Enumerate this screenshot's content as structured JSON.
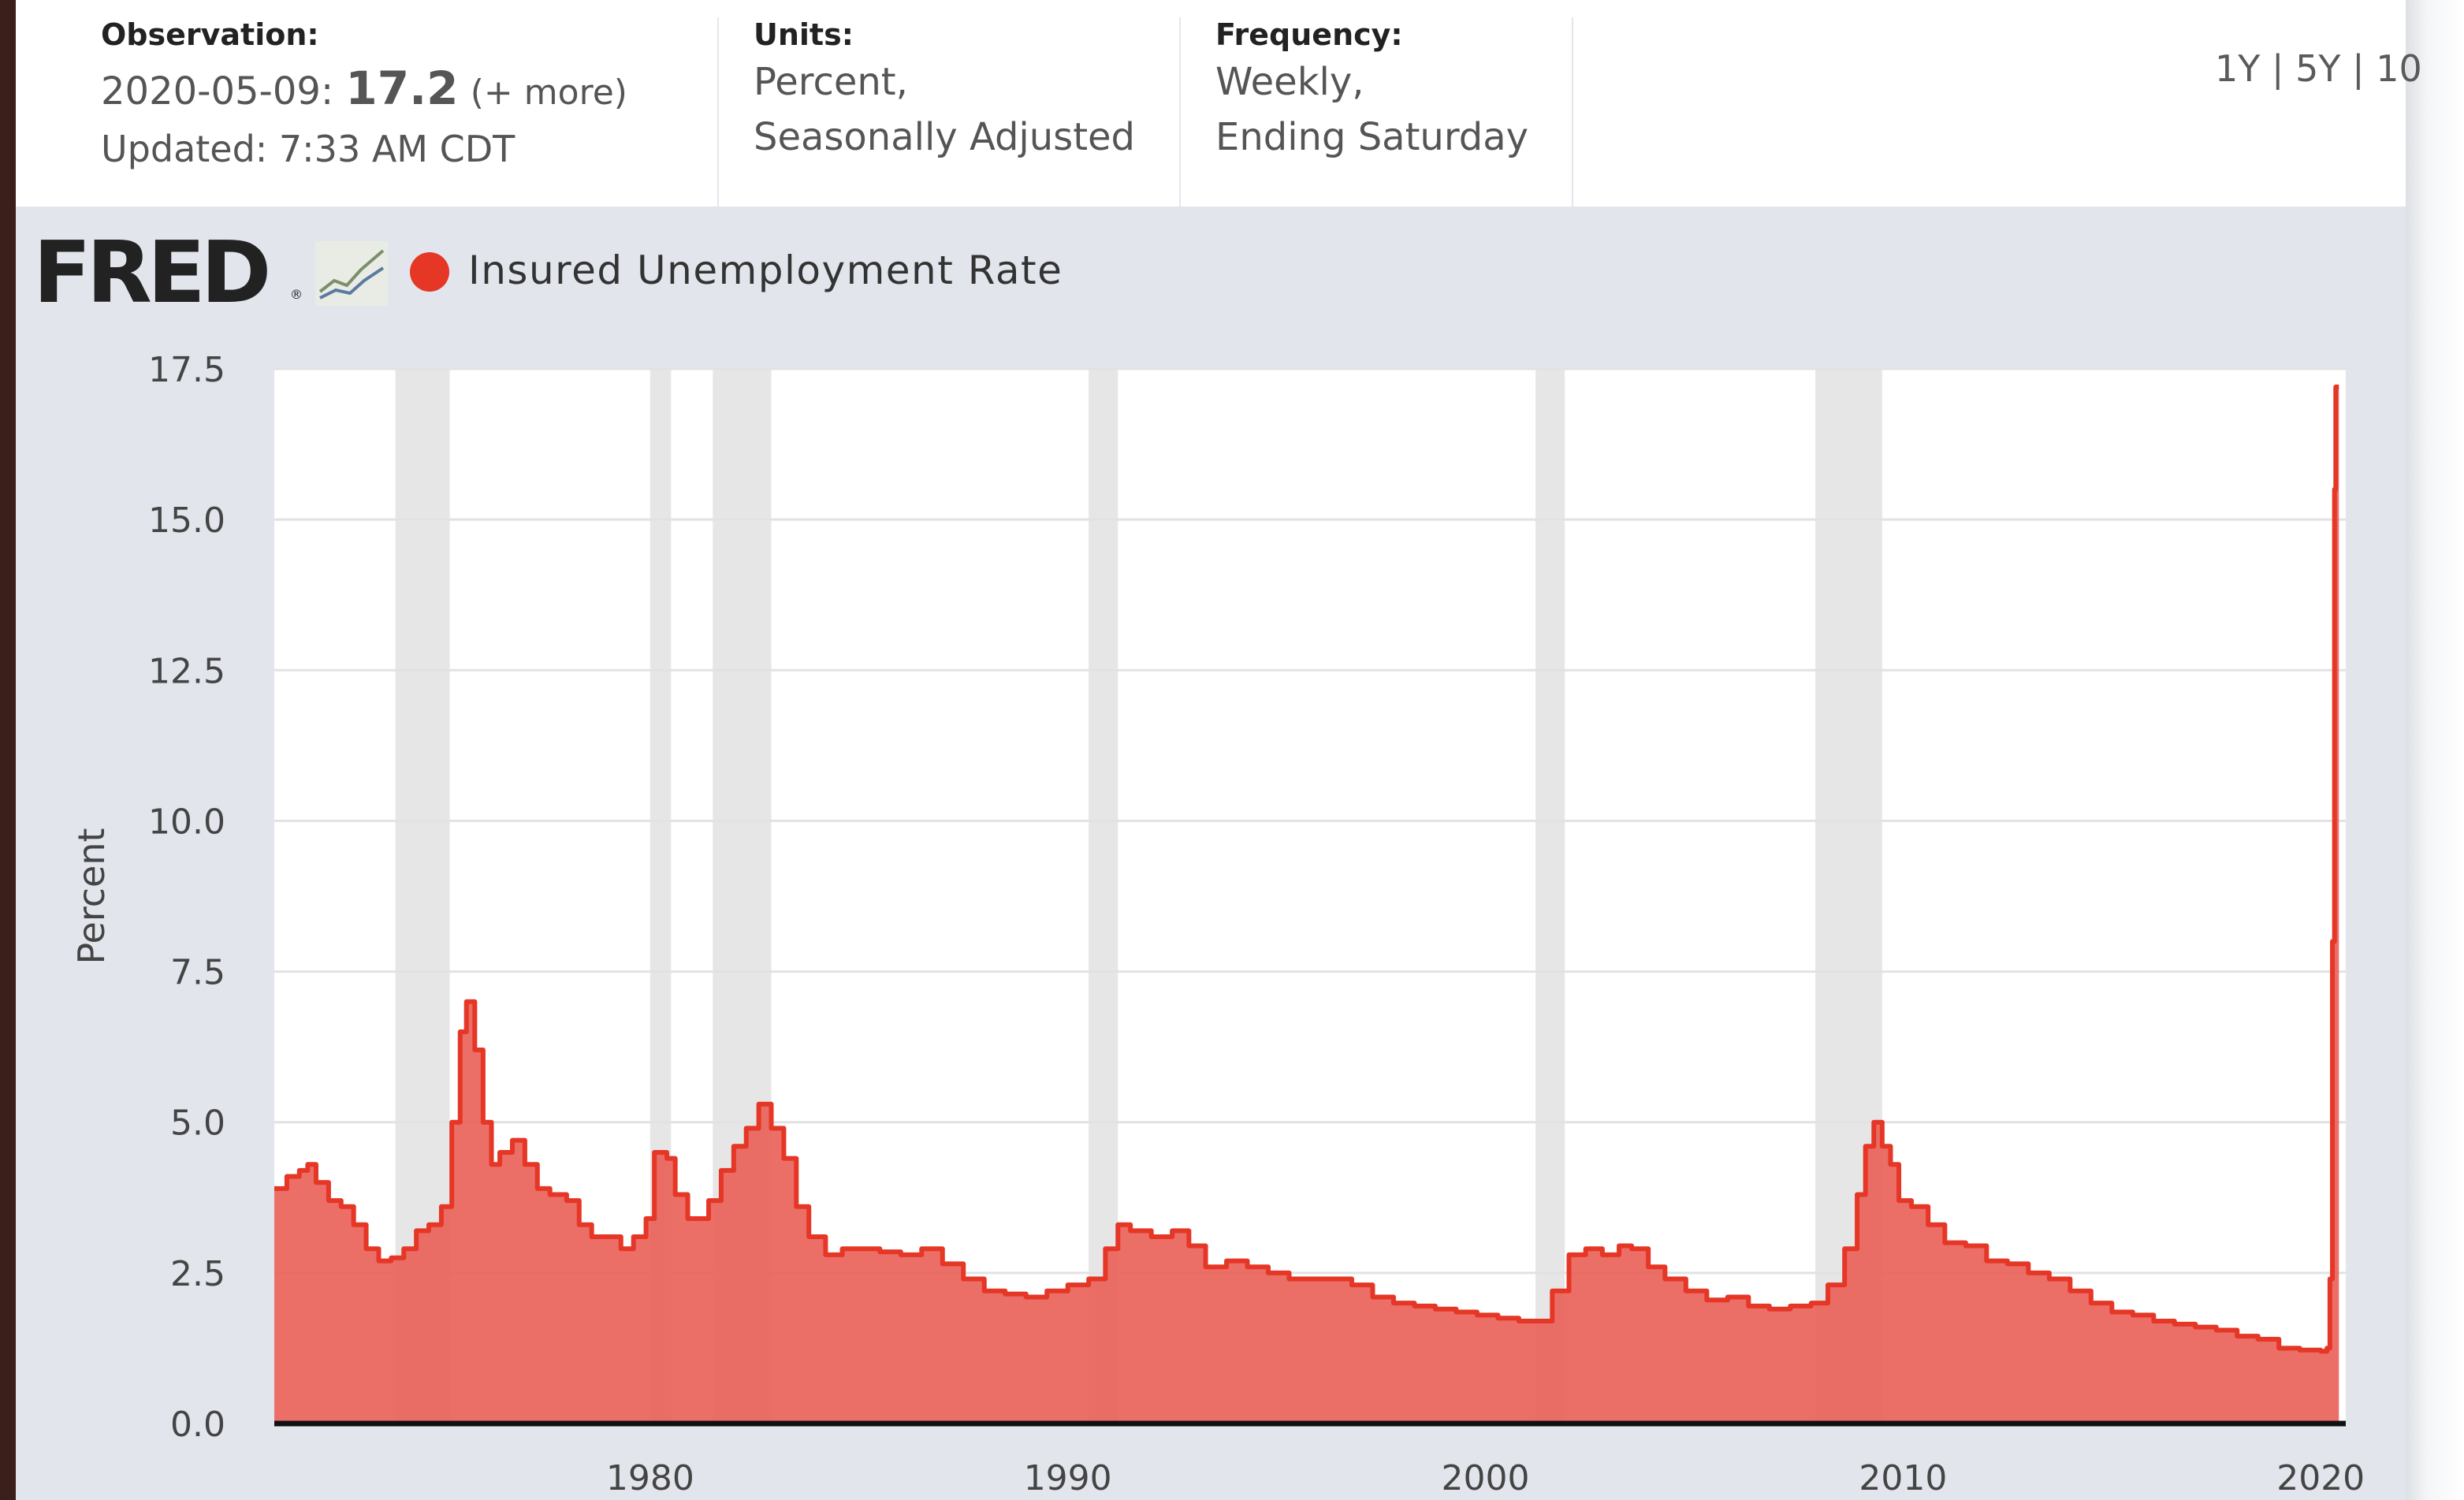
{
  "header": {
    "observation": {
      "label": "Observation:",
      "date": "2020-05-09:",
      "value": "17.2",
      "more": "(+ more)",
      "updated": "Updated: 7:33 AM CDT"
    },
    "units": {
      "label": "Units:",
      "line1": "Percent,",
      "line2": "Seasonally Adjusted"
    },
    "frequency": {
      "label": "Frequency:",
      "line1": "Weekly,",
      "line2": "Ending Saturday"
    },
    "ranges": "1Y | 5Y | 10"
  },
  "brand": {
    "name": "FRED",
    "icon": "line-chart-icon"
  },
  "chart_data": {
    "type": "area",
    "title": "",
    "legend": [
      {
        "name": "Insured Unemployment Rate",
        "color": "#e53626"
      }
    ],
    "xlabel": "",
    "ylabel": "Percent",
    "xlim": [
      1971,
      2020.6
    ],
    "ylim": [
      0,
      17.5
    ],
    "yticks": [
      "0.0",
      "2.5",
      "5.0",
      "7.5",
      "10.0",
      "12.5",
      "15.0",
      "17.5"
    ],
    "yticks_values": [
      0,
      2.5,
      5,
      7.5,
      10,
      12.5,
      15,
      17.5
    ],
    "xticks": [
      "1980",
      "1990",
      "2000",
      "2010",
      "2020"
    ],
    "xticks_values": [
      1980,
      1990,
      2000,
      2010,
      2020
    ],
    "grid": true,
    "line_color": "#e53626",
    "fill_color": "#e9625a",
    "recession_color": "#e6e6e6",
    "recessions": [
      [
        1973.9,
        1975.2
      ],
      [
        1980.0,
        1980.5
      ],
      [
        1981.5,
        1982.9
      ],
      [
        1990.5,
        1991.2
      ],
      [
        2001.2,
        2001.9
      ],
      [
        2007.9,
        2009.5
      ]
    ],
    "series": [
      {
        "name": "Insured Unemployment Rate",
        "x": [
          1971.0,
          1971.3,
          1971.6,
          1971.8,
          1972.0,
          1972.3,
          1972.6,
          1972.9,
          1973.2,
          1973.5,
          1973.8,
          1974.1,
          1974.4,
          1974.7,
          1975.0,
          1975.25,
          1975.45,
          1975.6,
          1975.8,
          1976.0,
          1976.2,
          1976.4,
          1976.7,
          1977.0,
          1977.3,
          1977.6,
          1978.0,
          1978.3,
          1978.6,
          1979.0,
          1979.3,
          1979.6,
          1979.9,
          1980.1,
          1980.4,
          1980.6,
          1980.9,
          1981.1,
          1981.4,
          1981.7,
          1982.0,
          1982.3,
          1982.6,
          1982.9,
          1983.2,
          1983.5,
          1983.8,
          1984.2,
          1984.6,
          1985.0,
          1985.5,
          1986.0,
          1986.5,
          1987.0,
          1987.5,
          1988.0,
          1988.5,
          1989.0,
          1989.5,
          1990.0,
          1990.5,
          1990.9,
          1991.2,
          1991.5,
          1992.0,
          1992.5,
          1992.9,
          1993.3,
          1993.8,
          1994.3,
          1994.8,
          1995.3,
          1995.8,
          1996.3,
          1996.8,
          1997.3,
          1997.8,
          1998.3,
          1998.8,
          1999.3,
          1999.8,
          2000.3,
          2000.8,
          2001.2,
          2001.6,
          2002.0,
          2002.4,
          2002.8,
          2003.2,
          2003.5,
          2003.9,
          2004.3,
          2004.8,
          2005.3,
          2005.8,
          2006.3,
          2006.8,
          2007.3,
          2007.8,
          2008.2,
          2008.6,
          2008.9,
          2009.1,
          2009.3,
          2009.5,
          2009.7,
          2009.9,
          2010.2,
          2010.6,
          2011.0,
          2011.5,
          2012.0,
          2012.5,
          2013.0,
          2013.5,
          2014.0,
          2014.5,
          2015.0,
          2015.5,
          2016.0,
          2016.5,
          2017.0,
          2017.5,
          2018.0,
          2018.5,
          2019.0,
          2019.5,
          2020.0,
          2020.15,
          2020.22,
          2020.28,
          2020.33,
          2020.36
        ],
        "y": [
          3.9,
          4.1,
          4.2,
          4.3,
          4.0,
          3.7,
          3.6,
          3.3,
          2.9,
          2.7,
          2.75,
          2.9,
          3.2,
          3.3,
          3.6,
          5.0,
          6.5,
          7.0,
          6.2,
          5.0,
          4.3,
          4.5,
          4.7,
          4.3,
          3.9,
          3.8,
          3.7,
          3.3,
          3.1,
          3.1,
          2.9,
          3.1,
          3.4,
          4.5,
          4.4,
          3.8,
          3.4,
          3.4,
          3.7,
          4.2,
          4.6,
          4.9,
          5.3,
          4.9,
          4.4,
          3.6,
          3.1,
          2.8,
          2.9,
          2.9,
          2.85,
          2.8,
          2.9,
          2.65,
          2.4,
          2.2,
          2.15,
          2.1,
          2.2,
          2.3,
          2.4,
          2.9,
          3.3,
          3.2,
          3.1,
          3.2,
          2.95,
          2.6,
          2.7,
          2.6,
          2.5,
          2.4,
          2.4,
          2.4,
          2.3,
          2.1,
          2.0,
          1.95,
          1.9,
          1.85,
          1.8,
          1.75,
          1.7,
          1.7,
          2.2,
          2.8,
          2.9,
          2.8,
          2.95,
          2.9,
          2.6,
          2.4,
          2.2,
          2.05,
          2.1,
          1.95,
          1.9,
          1.95,
          2.0,
          2.3,
          2.9,
          3.8,
          4.6,
          5.0,
          4.6,
          4.3,
          3.7,
          3.6,
          3.3,
          3.0,
          2.95,
          2.7,
          2.65,
          2.5,
          2.4,
          2.2,
          2.0,
          1.85,
          1.8,
          1.7,
          1.65,
          1.6,
          1.55,
          1.45,
          1.4,
          1.25,
          1.22,
          1.2,
          1.25,
          2.4,
          8.0,
          15.5,
          17.2
        ]
      }
    ]
  }
}
